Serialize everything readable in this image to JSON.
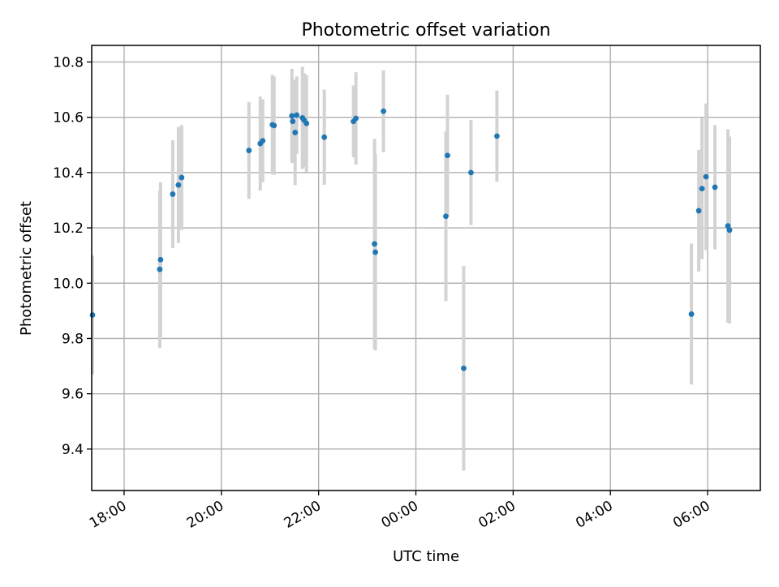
{
  "chart_data": {
    "type": "scatter",
    "title": "Photometric offset variation",
    "xlabel": "UTC time",
    "ylabel": "Photometric offset",
    "x_axis_type": "time",
    "xlim": [
      "17:20",
      "07:05 (+1 day)"
    ],
    "ylim": [
      9.25,
      10.86
    ],
    "x_ticks": [
      "18:00",
      "20:00",
      "22:00",
      "00:00",
      "02:00",
      "04:00",
      "06:00"
    ],
    "y_ticks": [
      "9.4",
      "9.6",
      "9.8",
      "10.0",
      "10.2",
      "10.4",
      "10.6",
      "10.8"
    ],
    "x_tick_label_rotation": "30 degrees",
    "grid": true,
    "legend": "none",
    "colors": {
      "point": "#1f77b4",
      "errorbar": "#d3d3d3",
      "grid": "#b0b0b0",
      "axes": "#000000"
    },
    "points": [
      {
        "time": "17:21",
        "y": 9.885,
        "err": 0.215
      },
      {
        "time": "18:44",
        "y": 10.05,
        "err": 0.285
      },
      {
        "time": "18:45",
        "y": 10.085,
        "err": 0.28
      },
      {
        "time": "19:00",
        "y": 10.322,
        "err": 0.195
      },
      {
        "time": "19:07",
        "y": 10.355,
        "err": 0.21
      },
      {
        "time": "19:11",
        "y": 10.382,
        "err": 0.19
      },
      {
        "time": "20:34",
        "y": 10.48,
        "err": 0.175
      },
      {
        "time": "20:48",
        "y": 10.505,
        "err": 0.17
      },
      {
        "time": "20:51",
        "y": 10.515,
        "err": 0.15
      },
      {
        "time": "21:03",
        "y": 10.573,
        "err": 0.18
      },
      {
        "time": "21:05",
        "y": 10.57,
        "err": 0.178
      },
      {
        "time": "21:27",
        "y": 10.605,
        "err": 0.17
      },
      {
        "time": "21:28",
        "y": 10.585,
        "err": 0.15
      },
      {
        "time": "21:31",
        "y": 10.545,
        "err": 0.19
      },
      {
        "time": "21:33",
        "y": 10.608,
        "err": 0.14
      },
      {
        "time": "21:40",
        "y": 10.598,
        "err": 0.185
      },
      {
        "time": "21:42",
        "y": 10.59,
        "err": 0.17
      },
      {
        "time": "21:45",
        "y": 10.578,
        "err": 0.175
      },
      {
        "time": "22:07",
        "y": 10.528,
        "err": 0.172
      },
      {
        "time": "22:43",
        "y": 10.585,
        "err": 0.13
      },
      {
        "time": "22:46",
        "y": 10.596,
        "err": 0.167
      },
      {
        "time": "23:20",
        "y": 10.622,
        "err": 0.148
      },
      {
        "time": "23:09",
        "y": 10.142,
        "err": 0.38
      },
      {
        "time": "23:10",
        "y": 10.112,
        "err": 0.355
      },
      {
        "time": "00:37",
        "y": 10.242,
        "err": 0.307
      },
      {
        "time": "00:39",
        "y": 10.462,
        "err": 0.22
      },
      {
        "time": "00:59",
        "y": 9.692,
        "err": 0.37
      },
      {
        "time": "01:08",
        "y": 10.4,
        "err": 0.19
      },
      {
        "time": "01:40",
        "y": 10.532,
        "err": 0.165
      },
      {
        "time": "05:40",
        "y": 9.888,
        "err": 0.255
      },
      {
        "time": "05:49",
        "y": 10.262,
        "err": 0.22
      },
      {
        "time": "05:53",
        "y": 10.342,
        "err": 0.255
      },
      {
        "time": "05:58",
        "y": 10.385,
        "err": 0.265
      },
      {
        "time": "06:09",
        "y": 10.347,
        "err": 0.225
      },
      {
        "time": "06:25",
        "y": 10.207,
        "err": 0.35
      },
      {
        "time": "06:27",
        "y": 10.192,
        "err": 0.338
      }
    ]
  }
}
